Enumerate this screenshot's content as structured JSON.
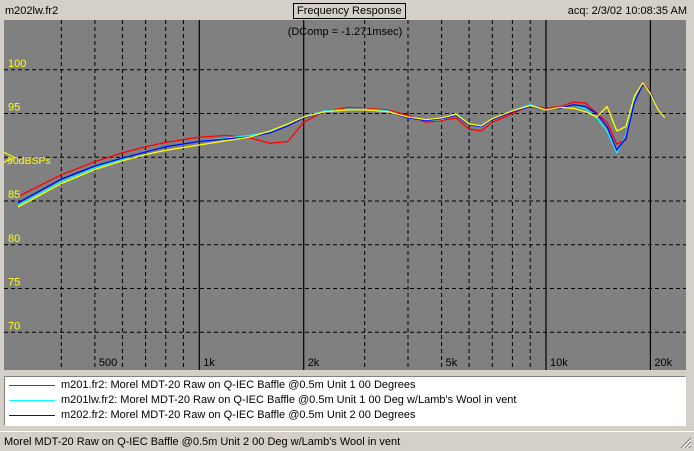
{
  "window": {
    "filename": "m202lw.fr2",
    "title": "Frequency Response",
    "acq": "acq: 2/3/02 10:08:35 AM"
  },
  "colors": {
    "plot_bg": "#808080",
    "grid": "#000000",
    "y_tick": "#ffff00",
    "x_tick": "#000000",
    "red": "#ff0000",
    "cyan": "#00ffff",
    "blue": "#0000ff",
    "yellow": "#ffff00"
  },
  "legend": [
    {
      "label": "m201.fr2:  Morel MDT-20 Raw on Q-IEC Baffle @0.5m Unit 1 00 Degrees",
      "color": "#ff0000"
    },
    {
      "label": "m201lw.fr2:  Morel MDT-20 Raw on Q-IEC Baffle @0.5m Unit 1 00 Deg w/Lamb's Wool in vent",
      "color": "#00ffff"
    },
    {
      "label": "m202.fr2:  Morel MDT-20 Raw on Q-IEC Baffle @0.5m Unit 2 00 Degrees",
      "color": "#0000ff"
    }
  ],
  "statusbar": {
    "text": "Morel MDT-20 Raw on Q-IEC Baffle @0.5m Unit 2 00 Deg w/Lamb's Wool in vent"
  },
  "chart_data": {
    "type": "line",
    "annotation": "(DComp = -1.271msec)",
    "ref_label": "90dBSPs",
    "ref_level": 90,
    "xscale": "log",
    "xlim": [
      300,
      25000
    ],
    "ylim": [
      65,
      105
    ],
    "grid": true,
    "legend_position": "bottom",
    "x_ticks": [
      {
        "label": "500",
        "value": 500
      },
      {
        "label": "1k",
        "value": 1000
      },
      {
        "label": "2k",
        "value": 2000
      },
      {
        "label": "5k",
        "value": 5000
      },
      {
        "label": "10k",
        "value": 10000
      },
      {
        "label": "20k",
        "value": 20000
      }
    ],
    "y_ticks": [
      {
        "label": "100",
        "value": 100
      },
      {
        "label": "95",
        "value": 95
      },
      {
        "label": "85",
        "value": 85
      },
      {
        "label": "80",
        "value": 80
      },
      {
        "label": "75",
        "value": 75
      },
      {
        "label": "70",
        "value": 70
      }
    ],
    "series": [
      {
        "name": "m201.fr2",
        "color": "#ff0000",
        "points": [
          [
            300,
            85.5
          ],
          [
            400,
            88
          ],
          [
            500,
            89.5
          ],
          [
            600,
            90.5
          ],
          [
            700,
            91.2
          ],
          [
            800,
            91.7
          ],
          [
            1000,
            92.3
          ],
          [
            1200,
            92.5
          ],
          [
            1400,
            92.2
          ],
          [
            1600,
            91.6
          ],
          [
            1800,
            91.8
          ],
          [
            2000,
            94
          ],
          [
            2300,
            95.3
          ],
          [
            2700,
            95.7
          ],
          [
            3000,
            95.6
          ],
          [
            3500,
            95.4
          ],
          [
            4000,
            94.8
          ],
          [
            4500,
            94
          ],
          [
            5000,
            94.2
          ],
          [
            5500,
            94.5
          ],
          [
            6000,
            93.2
          ],
          [
            6500,
            93
          ],
          [
            7000,
            94
          ],
          [
            8000,
            95
          ],
          [
            9000,
            95.9
          ],
          [
            10000,
            95.6
          ],
          [
            11000,
            95.8
          ],
          [
            12000,
            96.3
          ],
          [
            13000,
            96.2
          ],
          [
            14000,
            95
          ],
          [
            15000,
            94
          ],
          [
            16000,
            91.5
          ],
          [
            17000,
            92
          ],
          [
            18000,
            96.5
          ],
          [
            19000,
            98.5
          ],
          [
            20000,
            97.5
          ],
          [
            21000,
            95.5
          ],
          [
            22000,
            94.5
          ]
        ]
      },
      {
        "name": "m201lw.fr2",
        "color": "#00ffff",
        "points": [
          [
            300,
            84.5
          ],
          [
            400,
            87.2
          ],
          [
            500,
            88.8
          ],
          [
            600,
            89.8
          ],
          [
            700,
            90.6
          ],
          [
            800,
            91.2
          ],
          [
            1000,
            91.8
          ],
          [
            1200,
            92.2
          ],
          [
            1400,
            92.5
          ],
          [
            1600,
            92.9
          ],
          [
            1800,
            93.6
          ],
          [
            2000,
            94.6
          ],
          [
            2300,
            95.3
          ],
          [
            2700,
            95.5
          ],
          [
            3000,
            95.5
          ],
          [
            3500,
            95.3
          ],
          [
            4000,
            94.5
          ],
          [
            4500,
            94.2
          ],
          [
            5000,
            94.3
          ],
          [
            5500,
            95
          ],
          [
            6000,
            93.7
          ],
          [
            6500,
            93.5
          ],
          [
            7000,
            94.3
          ],
          [
            8000,
            95.3
          ],
          [
            9000,
            96
          ],
          [
            10000,
            95.4
          ],
          [
            11000,
            95.6
          ],
          [
            12000,
            96
          ],
          [
            13000,
            95.5
          ],
          [
            14000,
            94.5
          ],
          [
            15000,
            93
          ],
          [
            16000,
            90.5
          ],
          [
            17000,
            92.5
          ],
          [
            18000,
            96.5
          ],
          [
            19000,
            98.3
          ],
          [
            20000,
            97.5
          ],
          [
            21000,
            95.5
          ],
          [
            22000,
            94.5
          ]
        ]
      },
      {
        "name": "m202.fr2",
        "color": "#0000ff",
        "points": [
          [
            300,
            84.8
          ],
          [
            400,
            87.5
          ],
          [
            500,
            89
          ],
          [
            600,
            89.9
          ],
          [
            700,
            90.6
          ],
          [
            800,
            91.2
          ],
          [
            1000,
            91.8
          ],
          [
            1200,
            92.1
          ],
          [
            1400,
            92.3
          ],
          [
            1600,
            92.8
          ],
          [
            1800,
            93.6
          ],
          [
            2000,
            94.5
          ],
          [
            2300,
            95.2
          ],
          [
            2700,
            95.4
          ],
          [
            3000,
            95.4
          ],
          [
            3500,
            95.2
          ],
          [
            4000,
            94.5
          ],
          [
            4500,
            94.2
          ],
          [
            5000,
            94.4
          ],
          [
            5500,
            94.8
          ],
          [
            6000,
            93.7
          ],
          [
            6500,
            93.5
          ],
          [
            7000,
            94.3
          ],
          [
            8000,
            95.2
          ],
          [
            9000,
            95.8
          ],
          [
            10000,
            95.4
          ],
          [
            11000,
            95.6
          ],
          [
            12000,
            96
          ],
          [
            13000,
            95.8
          ],
          [
            14000,
            95
          ],
          [
            15000,
            93.5
          ],
          [
            16000,
            90.8
          ],
          [
            17000,
            92.2
          ],
          [
            18000,
            96.3
          ],
          [
            19000,
            98.3
          ],
          [
            20000,
            97.5
          ],
          [
            21000,
            95.5
          ],
          [
            22000,
            94.5
          ]
        ]
      },
      {
        "name": "m202lw.fr2",
        "color": "#ffff00",
        "points": [
          [
            300,
            84.3
          ],
          [
            400,
            87
          ],
          [
            500,
            88.6
          ],
          [
            600,
            89.6
          ],
          [
            700,
            90.3
          ],
          [
            800,
            90.8
          ],
          [
            1000,
            91.4
          ],
          [
            1200,
            91.9
          ],
          [
            1400,
            92.3
          ],
          [
            1600,
            93
          ],
          [
            1800,
            93.8
          ],
          [
            2000,
            94.6
          ],
          [
            2300,
            95.2
          ],
          [
            2700,
            95.4
          ],
          [
            3000,
            95.4
          ],
          [
            3500,
            95.2
          ],
          [
            4000,
            94.6
          ],
          [
            4500,
            94.3
          ],
          [
            5000,
            94.5
          ],
          [
            5500,
            94.9
          ],
          [
            6000,
            93.8
          ],
          [
            6500,
            93.6
          ],
          [
            7000,
            94.4
          ],
          [
            8000,
            95.3
          ],
          [
            9000,
            95.9
          ],
          [
            10000,
            95.4
          ],
          [
            11000,
            95.7
          ],
          [
            12000,
            95.6
          ],
          [
            13000,
            95.2
          ],
          [
            14000,
            94.6
          ],
          [
            15000,
            95.8
          ],
          [
            16000,
            93
          ],
          [
            17000,
            93.5
          ],
          [
            18000,
            97
          ],
          [
            19000,
            98.5
          ],
          [
            20000,
            97.3
          ],
          [
            21000,
            95.5
          ],
          [
            22000,
            94.5
          ]
        ]
      }
    ]
  }
}
